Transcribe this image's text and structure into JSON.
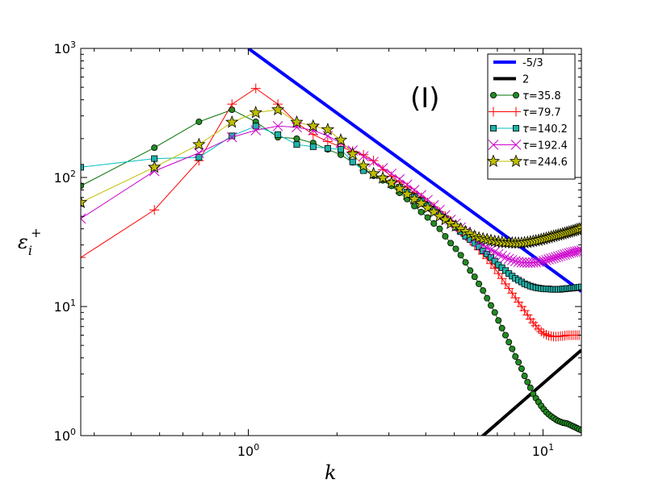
{
  "chart_data": {
    "type": "line",
    "scale": "log-log",
    "panel_label": "(I)",
    "xlabel": "k",
    "ylabel": "ε",
    "ylabel_sub": "i",
    "ylabel_sup": "+",
    "xlim": [
      0.27,
      13.5
    ],
    "ylim": [
      1,
      1000
    ],
    "x_ticks": [
      {
        "value": 1,
        "base": "10",
        "exp": "0"
      },
      {
        "value": 10,
        "base": "10",
        "exp": "1"
      }
    ],
    "y_ticks": [
      {
        "value": 1,
        "base": "10",
        "exp": "0"
      },
      {
        "value": 10,
        "base": "10",
        "exp": "1"
      },
      {
        "value": 100,
        "base": "10",
        "exp": "2"
      },
      {
        "value": 1000,
        "base": "10",
        "exp": "3"
      }
    ],
    "reference_lines": [
      {
        "name": "-5/3",
        "color": "#0000ff",
        "width": 4,
        "x": [
          1.0,
          13.5
        ],
        "y": [
          1000,
          13.1
        ]
      },
      {
        "name": "2",
        "color": "#000000",
        "width": 4,
        "x": [
          6.2,
          13.5
        ],
        "y": [
          0.98,
          4.6
        ]
      }
    ],
    "series": [
      {
        "name": "τ=35.8",
        "legend_prefix": "τ",
        "legend_value": "=35.8",
        "color": "#007000",
        "marker": "circle",
        "marker_fill": "#228b22",
        "x": [
          0.27,
          0.48,
          0.68,
          0.88,
          1.06,
          1.26,
          1.46,
          1.66,
          1.86,
          2.06,
          2.26,
          2.46,
          2.66,
          2.86,
          3.06,
          3.26,
          3.46,
          3.66,
          3.86,
          4.06,
          4.26,
          4.46,
          4.66,
          4.86,
          5.06,
          5.26,
          5.46,
          5.66,
          5.86,
          6.06,
          6.26,
          6.46,
          6.66,
          6.86,
          7.06,
          7.26,
          7.46,
          7.66,
          7.86,
          8.06,
          8.26,
          8.46,
          8.66,
          8.86,
          9.06,
          9.26,
          9.46,
          9.66,
          9.86,
          10.06,
          10.26,
          10.46,
          10.66,
          10.86,
          11.06,
          11.26,
          11.46,
          11.66,
          11.86,
          12.06,
          12.26,
          12.46,
          12.66,
          12.86,
          13.06,
          13.26,
          13.5
        ],
        "y": [
          86,
          170,
          270,
          335,
          270,
          205,
          200,
          185,
          165,
          150,
          131,
          117,
          103,
          95,
          86,
          76,
          68,
          60,
          54,
          49,
          44,
          40,
          35,
          31,
          28,
          25,
          22,
          19,
          17,
          15,
          13.3,
          11.6,
          10.2,
          9,
          7.8,
          6.8,
          6,
          5.3,
          4.7,
          4.1,
          3.7,
          3.3,
          2.9,
          2.6,
          2.35,
          2.1,
          1.95,
          1.82,
          1.7,
          1.6,
          1.52,
          1.46,
          1.41,
          1.37,
          1.33,
          1.3,
          1.28,
          1.26,
          1.25,
          1.24,
          1.22,
          1.2,
          1.18,
          1.16,
          1.14,
          1.12,
          1.1
        ]
      },
      {
        "name": "τ=79.7",
        "legend_prefix": "τ",
        "legend_value": "=79.7",
        "color": "#ff0000",
        "marker": "plus",
        "marker_fill": "none",
        "x": [
          0.27,
          0.48,
          0.68,
          0.88,
          1.06,
          1.26,
          1.46,
          1.66,
          1.86,
          2.06,
          2.26,
          2.46,
          2.66,
          2.86,
          3.06,
          3.26,
          3.46,
          3.66,
          3.86,
          4.06,
          4.26,
          4.46,
          4.66,
          4.86,
          5.06,
          5.26,
          5.46,
          5.66,
          5.86,
          6.06,
          6.26,
          6.46,
          6.66,
          6.86,
          7.06,
          7.26,
          7.46,
          7.66,
          7.86,
          8.06,
          8.26,
          8.46,
          8.66,
          8.86,
          9.06,
          9.26,
          9.46,
          9.66,
          9.86,
          10.06,
          10.26,
          10.46,
          10.66,
          10.86,
          11.06,
          11.26,
          11.46,
          11.66,
          11.86,
          12.06,
          12.26,
          12.46,
          12.66,
          12.86,
          13.06,
          13.26,
          13.5
        ],
        "y": [
          24,
          56,
          135,
          370,
          490,
          370,
          265,
          215,
          190,
          172,
          160,
          150,
          135,
          115,
          102,
          92,
          84,
          76,
          70,
          64,
          59,
          54,
          50,
          46,
          42,
          38.5,
          35.5,
          32.5,
          30,
          27.5,
          25.5,
          23.5,
          21.5,
          19.8,
          18,
          16.5,
          15,
          13.8,
          12.7,
          11.7,
          10.8,
          10,
          9.3,
          8.6,
          8,
          7.5,
          7.1,
          6.7,
          6.4,
          6.2,
          6.05,
          5.95,
          5.9,
          5.85,
          5.85,
          5.85,
          5.9,
          5.9,
          5.95,
          6,
          6,
          6,
          6,
          6,
          6,
          6,
          6
        ]
      },
      {
        "name": "τ=140.2",
        "legend_prefix": "τ",
        "legend_value": "=140.2",
        "color": "#00bfbf",
        "marker": "square",
        "marker_fill": "#20b2aa",
        "x": [
          0.27,
          0.48,
          0.68,
          0.88,
          1.06,
          1.26,
          1.46,
          1.66,
          1.86,
          2.06,
          2.26,
          2.46,
          2.66,
          2.86,
          3.06,
          3.26,
          3.46,
          3.66,
          3.86,
          4.06,
          4.26,
          4.46,
          4.66,
          4.86,
          5.06,
          5.26,
          5.46,
          5.66,
          5.86,
          6.06,
          6.26,
          6.46,
          6.66,
          6.86,
          7.06,
          7.26,
          7.46,
          7.66,
          7.86,
          8.06,
          8.26,
          8.46,
          8.66,
          8.86,
          9.06,
          9.26,
          9.46,
          9.66,
          9.86,
          10.06,
          10.26,
          10.46,
          10.66,
          10.86,
          11.06,
          11.26,
          11.46,
          11.66,
          11.86,
          12.06,
          12.26,
          12.46,
          12.66,
          12.86,
          13.06,
          13.26,
          13.5
        ],
        "y": [
          120,
          140,
          143,
          210,
          250,
          215,
          180,
          173,
          168,
          165,
          132,
          113,
          105,
          98,
          91,
          84,
          77,
          71,
          66,
          61,
          56,
          52,
          48,
          44,
          41,
          38,
          35,
          33,
          31,
          29,
          27,
          25.5,
          24,
          22.5,
          21,
          20,
          19,
          18,
          17.2,
          16.5,
          16,
          15.5,
          15,
          14.7,
          14.4,
          14.2,
          14,
          13.9,
          13.8,
          13.7,
          13.7,
          13.7,
          13.6,
          13.6,
          13.6,
          13.6,
          13.6,
          13.7,
          13.7,
          13.8,
          13.8,
          13.9,
          13.9,
          14,
          14,
          14.1,
          14.2
        ]
      },
      {
        "name": "τ=192.4",
        "legend_prefix": "τ",
        "legend_value": "=192.4",
        "color": "#cc00cc",
        "marker": "cross",
        "marker_fill": "none",
        "x": [
          0.27,
          0.48,
          0.68,
          0.88,
          1.06,
          1.26,
          1.46,
          1.66,
          1.86,
          2.06,
          2.26,
          2.46,
          2.66,
          2.86,
          3.06,
          3.26,
          3.46,
          3.66,
          3.86,
          4.06,
          4.26,
          4.46,
          4.66,
          4.86,
          5.06,
          5.26,
          5.46,
          5.66,
          5.86,
          6.06,
          6.26,
          6.46,
          6.66,
          6.86,
          7.06,
          7.26,
          7.46,
          7.66,
          7.86,
          8.06,
          8.26,
          8.46,
          8.66,
          8.86,
          9.06,
          9.26,
          9.46,
          9.66,
          9.86,
          10.06,
          10.26,
          10.46,
          10.66,
          10.86,
          11.06,
          11.26,
          11.46,
          11.66,
          11.86,
          12.06,
          12.26,
          12.46,
          12.66,
          12.86,
          13.06,
          13.26,
          13.5
        ],
        "y": [
          48,
          112,
          155,
          205,
          232,
          250,
          245,
          232,
          210,
          185,
          162,
          146,
          132,
          118,
          107,
          97,
          88,
          80,
          73,
          67,
          61,
          56,
          51,
          47,
          44,
          41,
          38,
          35.5,
          33.5,
          31.5,
          30,
          28.5,
          27.5,
          26.5,
          25.5,
          24.7,
          24,
          23.4,
          22.9,
          22.5,
          22.2,
          22,
          21.9,
          21.8,
          21.8,
          21.9,
          22,
          22.2,
          22.4,
          22.6,
          22.9,
          23.2,
          23.5,
          23.8,
          24.1,
          24.4,
          24.7,
          25,
          25.3,
          25.6,
          25.9,
          26.2,
          26.4,
          26.6,
          26.8,
          27,
          27.2
        ]
      },
      {
        "name": "τ=244.6",
        "legend_prefix": "τ",
        "legend_value": "=244.6",
        "color": "#bfbf00",
        "marker": "star",
        "marker_fill": "#bfbf00",
        "x": [
          0.27,
          0.48,
          0.68,
          0.88,
          1.06,
          1.26,
          1.46,
          1.66,
          1.86,
          2.06,
          2.26,
          2.46,
          2.66,
          2.86,
          3.06,
          3.26,
          3.46,
          3.66,
          3.86,
          4.06,
          4.26,
          4.46,
          4.66,
          4.86,
          5.06,
          5.26,
          5.46,
          5.66,
          5.86,
          6.06,
          6.26,
          6.46,
          6.66,
          6.86,
          7.06,
          7.26,
          7.46,
          7.66,
          7.86,
          8.06,
          8.26,
          8.46,
          8.66,
          8.86,
          9.06,
          9.26,
          9.46,
          9.66,
          9.86,
          10.06,
          10.26,
          10.46,
          10.66,
          10.86,
          11.06,
          11.26,
          11.46,
          11.66,
          11.86,
          12.06,
          12.26,
          12.46,
          12.66,
          12.86,
          13.06,
          13.26,
          13.5
        ],
        "y": [
          64,
          120,
          180,
          268,
          318,
          335,
          268,
          250,
          235,
          195,
          152,
          123,
          107,
          99,
          91,
          82,
          74,
          68,
          63,
          58,
          54,
          50,
          47,
          44,
          42,
          40,
          38,
          36.5,
          35,
          34,
          33.5,
          33,
          32.5,
          32,
          31.7,
          31.5,
          31.3,
          31.2,
          31.1,
          31,
          31,
          31,
          31.2,
          31.4,
          31.7,
          32,
          32.3,
          32.6,
          33,
          33.4,
          33.8,
          34.2,
          34.6,
          35,
          35.4,
          35.8,
          36.2,
          36.6,
          37,
          37.4,
          37.8,
          38.2,
          38.6,
          39,
          39.5,
          40,
          40.5
        ]
      }
    ],
    "legend": {
      "placement": "top-right"
    }
  }
}
